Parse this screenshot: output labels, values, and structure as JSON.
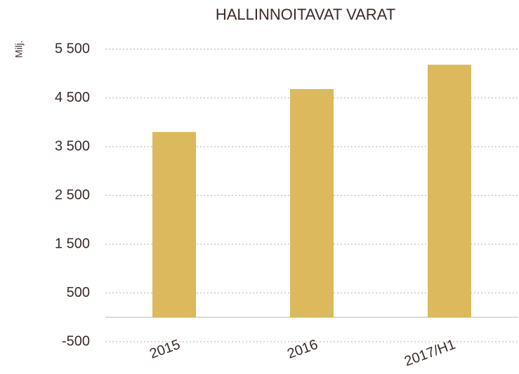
{
  "chart_data": {
    "type": "bar",
    "title": "HALLINNOITAVAT VARAT",
    "y_label": "Milj.",
    "categories": [
      "2015",
      "2016",
      "2017/H1"
    ],
    "values": [
      3800,
      4680,
      5180
    ],
    "color": "#dbb95c",
    "ylim": [
      -500,
      5500
    ],
    "yticks": [
      -500,
      500,
      {
        "value": 1500,
        "label": "1 500"
      },
      {
        "value": 2500,
        "label": "2 500"
      },
      {
        "value": 3500,
        "label": "3 500"
      },
      {
        "value": 4500,
        "label": "4 500"
      },
      {
        "value": 5500,
        "label": "5 500"
      }
    ],
    "grid": true
  }
}
